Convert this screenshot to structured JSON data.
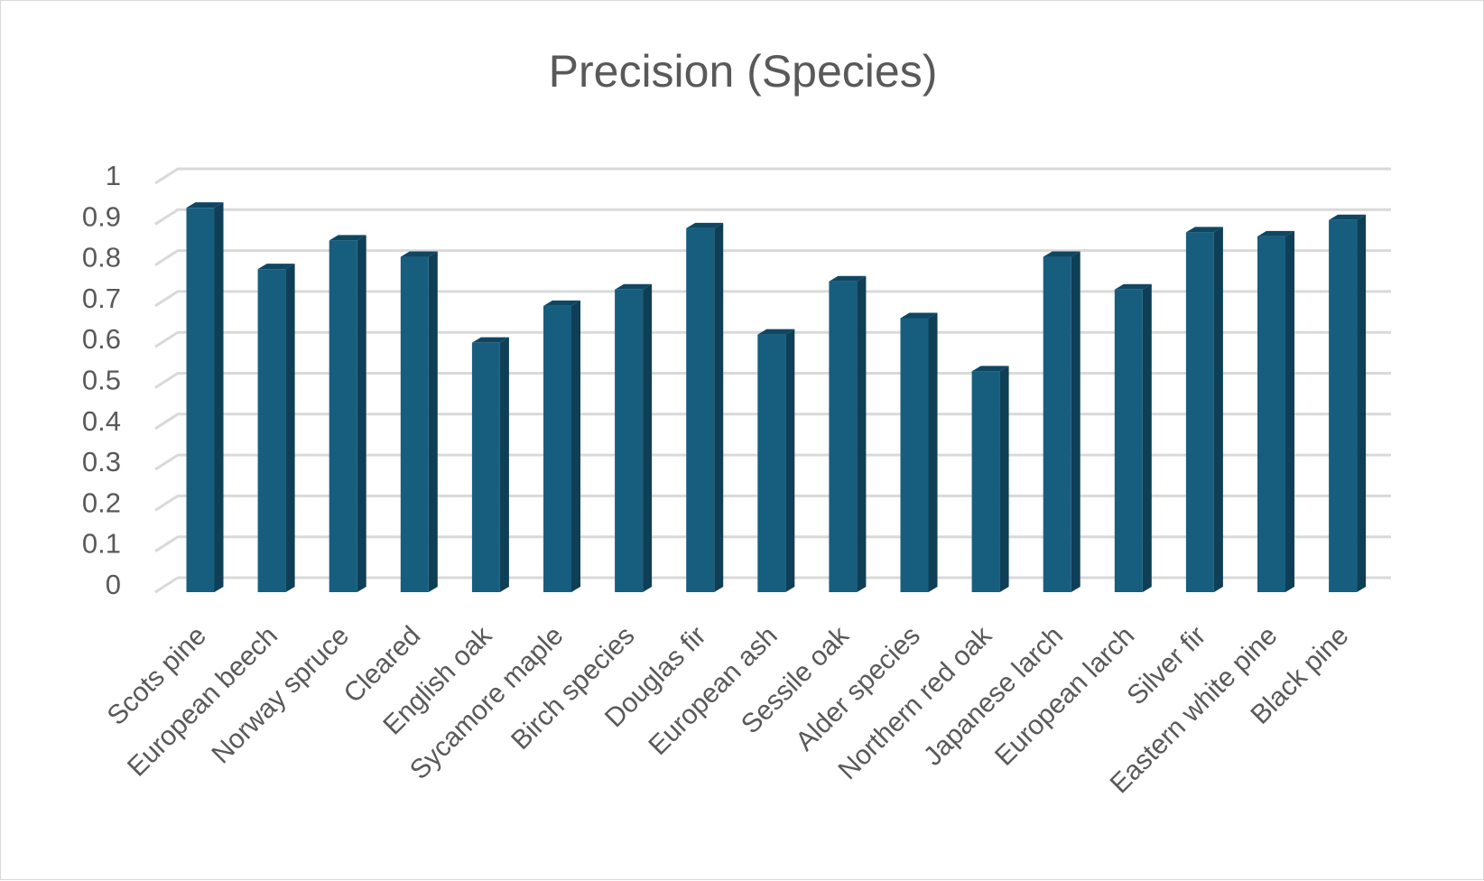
{
  "chart_data": {
    "type": "bar",
    "title": "Precision (Species)",
    "xlabel": "",
    "ylabel": "",
    "ylim": [
      0,
      1
    ],
    "y_ticks": [
      "0",
      "0.1",
      "0.2",
      "0.3",
      "0.4",
      "0.5",
      "0.6",
      "0.7",
      "0.8",
      "0.9",
      "1"
    ],
    "grid": true,
    "legend": "none",
    "style": "3d-column",
    "categories": [
      "Scots pine",
      "European beech",
      "Norway spruce",
      "Cleared",
      "English oak",
      "Sycamore maple",
      "Birch species",
      "Douglas fir",
      "European ash",
      "Sessile oak",
      "Alder species",
      "Northern red oak",
      "Japanese larch",
      "European larch",
      "Silver fir",
      "Eastern white pine",
      "Black pine"
    ],
    "values": [
      0.94,
      0.79,
      0.86,
      0.82,
      0.61,
      0.7,
      0.74,
      0.89,
      0.63,
      0.76,
      0.67,
      0.54,
      0.82,
      0.74,
      0.88,
      0.87,
      0.91
    ],
    "colors": {
      "bar_front": "#175e7e",
      "bar_side": "#0e3f57",
      "bar_top": "#0f4763",
      "grid": "#d9d9d9",
      "text": "#595959"
    }
  }
}
